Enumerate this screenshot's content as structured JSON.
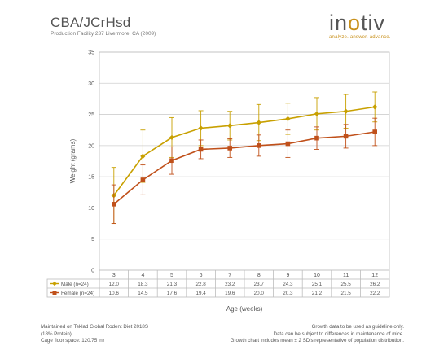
{
  "header": {
    "title": "CBA/JCrHsd",
    "subtitle": "Production Facility 237 Livermore, CA (2009)"
  },
  "logo": {
    "word_pre": "in",
    "word_dot": "o",
    "word_post": "tiv",
    "tagline": "analyze. answer. advance.",
    "brand_color": "#c8901a"
  },
  "footer": {
    "diet_line": "Maintained on Teklad Global Rodent Diet 2018S",
    "protein_line": "(18% Protein)",
    "cage_line": "Cage floor space: 120.75 in",
    "cage_unit_sup": "2",
    "note_1": "Growth data to be used as guideline only.",
    "note_2": "Data can be subject to differences in maintenance of mice.",
    "note_3": "Growth chart includes mean ± 2 SD's representative of population distribution."
  },
  "chart_data": {
    "type": "line",
    "x": [
      3,
      4,
      5,
      6,
      7,
      8,
      9,
      10,
      11,
      12
    ],
    "xlabel": "Age (weeks)",
    "ylabel": "Weight (grams)",
    "ylim": [
      0,
      35
    ],
    "yticks": [
      0,
      5,
      10,
      15,
      20,
      25,
      30,
      35
    ],
    "grid": true,
    "legend": "data-table-below",
    "series": [
      {
        "name": "Male (n=24)",
        "color": "#c8a000",
        "marker": "diamond",
        "values": [
          12.0,
          18.3,
          21.3,
          22.8,
          23.2,
          23.7,
          24.3,
          25.1,
          25.5,
          26.2
        ],
        "errors": [
          4.5,
          4.2,
          3.2,
          2.8,
          2.3,
          2.9,
          2.5,
          2.6,
          2.7,
          2.4
        ],
        "labels": [
          "12.0",
          "18.3",
          "21.3",
          "22.8",
          "23.2",
          "23.7",
          "24.3",
          "25.1",
          "25.5",
          "26.2"
        ]
      },
      {
        "name": "Female (n=24)",
        "color": "#c0501a",
        "marker": "square",
        "values": [
          10.6,
          14.5,
          17.6,
          19.4,
          19.6,
          20.0,
          20.3,
          21.2,
          21.5,
          22.2
        ],
        "errors": [
          3.1,
          2.4,
          2.2,
          1.5,
          1.5,
          1.7,
          2.2,
          1.8,
          1.9,
          2.2
        ],
        "labels": [
          "10.6",
          "14.5",
          "17.6",
          "19.4",
          "19.6",
          "20.0",
          "20.3",
          "21.2",
          "21.5",
          "22.2"
        ]
      }
    ]
  }
}
